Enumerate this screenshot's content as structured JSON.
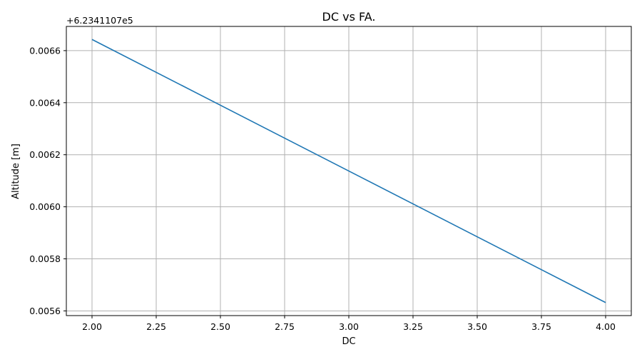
{
  "chart_data": {
    "type": "line",
    "title": "DC vs FA.",
    "xlabel": "DC",
    "ylabel": "Altitude [m]",
    "y_offset_label": "+6.2341107e5",
    "x": [
      2.0,
      4.0
    ],
    "series": [
      {
        "values": [
          0.006643,
          0.005632
        ]
      }
    ],
    "xlim": [
      1.9,
      4.1
    ],
    "ylim": [
      0.005582,
      0.006693
    ],
    "x_ticks": [
      2.0,
      2.25,
      2.5,
      2.75,
      3.0,
      3.25,
      3.5,
      3.75,
      4.0
    ],
    "x_tick_labels": [
      "2.00",
      "2.25",
      "2.50",
      "2.75",
      "3.00",
      "3.25",
      "3.50",
      "3.75",
      "4.00"
    ],
    "y_ticks": [
      0.0056,
      0.0058,
      0.006,
      0.0062,
      0.0064,
      0.0066
    ],
    "y_tick_labels": [
      "0.0056",
      "0.0058",
      "0.0060",
      "0.0062",
      "0.0064",
      "0.0066"
    ],
    "grid": true,
    "colors": {
      "series": "#1f77b4"
    }
  }
}
